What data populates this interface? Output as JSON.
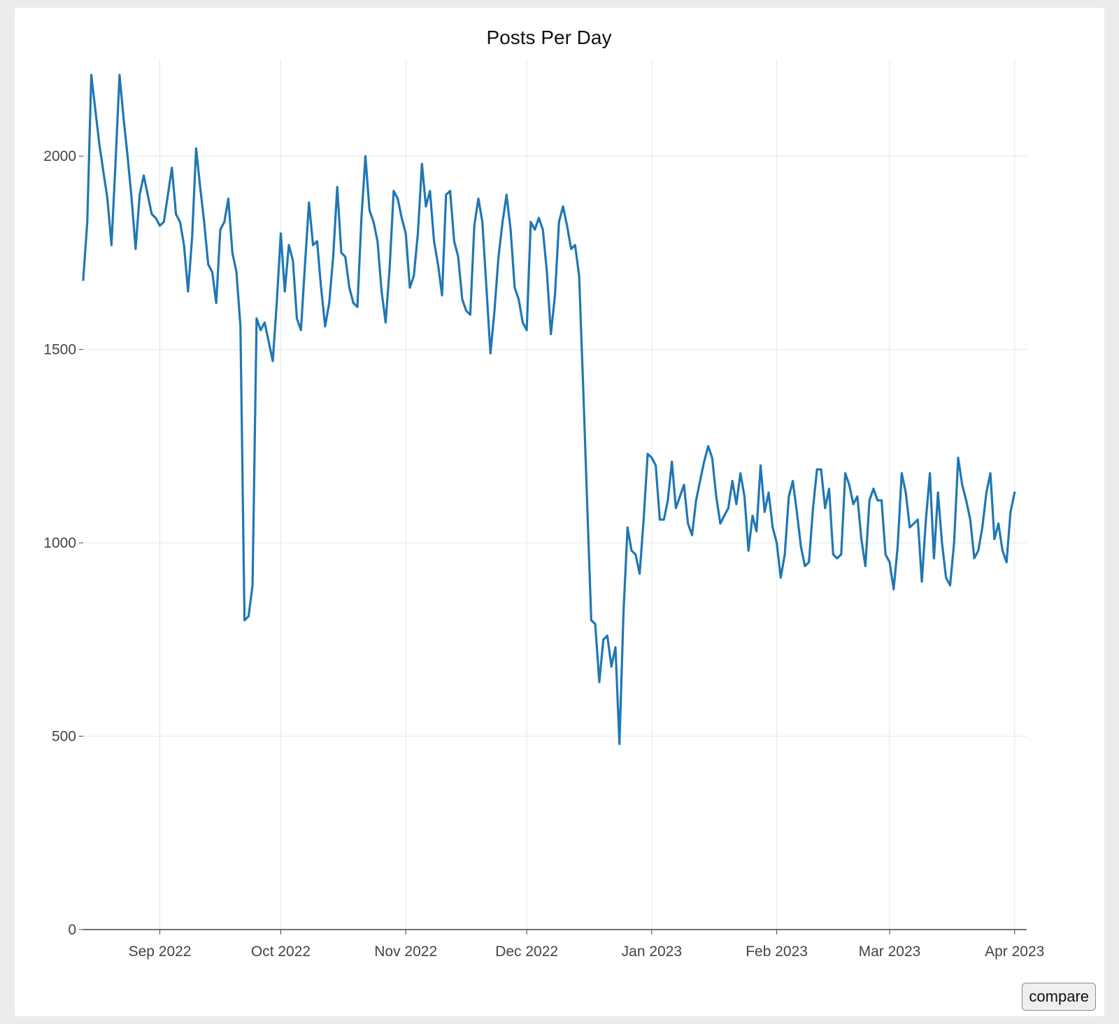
{
  "chart_data": {
    "type": "line",
    "title": "Posts Per Day",
    "xlabel": "",
    "ylabel": "",
    "start_date": "2022-08-13",
    "x_range": [
      "2022-08-13",
      "2023-04-04"
    ],
    "ylim": [
      0,
      2250
    ],
    "y_ticks": [
      0,
      500,
      1000,
      1500,
      2000
    ],
    "x_ticks": [
      {
        "date": "2022-09-01",
        "label": "Sep 2022"
      },
      {
        "date": "2022-10-01",
        "label": "Oct 2022"
      },
      {
        "date": "2022-11-01",
        "label": "Nov 2022"
      },
      {
        "date": "2022-12-01",
        "label": "Dec 2022"
      },
      {
        "date": "2023-01-01",
        "label": "Jan 2023"
      },
      {
        "date": "2023-02-01",
        "label": "Feb 2023"
      },
      {
        "date": "2023-03-01",
        "label": "Mar 2023"
      },
      {
        "date": "2023-04-01",
        "label": "Apr 2023"
      }
    ],
    "grid": true,
    "legend": "none",
    "series": [
      {
        "color": "#1f77b4",
        "values": [
          1680,
          1830,
          2210,
          2120,
          2030,
          1960,
          1890,
          1770,
          1980,
          2210,
          2100,
          2000,
          1890,
          1760,
          1900,
          1950,
          1900,
          1850,
          1840,
          1820,
          1830,
          1900,
          1970,
          1850,
          1830,
          1770,
          1650,
          1790,
          2020,
          1920,
          1830,
          1720,
          1700,
          1620,
          1810,
          1830,
          1890,
          1750,
          1700,
          1560,
          800,
          810,
          890,
          1580,
          1550,
          1570,
          1520,
          1470,
          1620,
          1800,
          1650,
          1770,
          1730,
          1580,
          1550,
          1720,
          1880,
          1770,
          1780,
          1660,
          1560,
          1620,
          1740,
          1920,
          1750,
          1740,
          1660,
          1620,
          1610,
          1840,
          2000,
          1860,
          1830,
          1780,
          1650,
          1570,
          1710,
          1910,
          1890,
          1840,
          1800,
          1660,
          1690,
          1800,
          1980,
          1870,
          1910,
          1780,
          1720,
          1640,
          1900,
          1910,
          1780,
          1740,
          1630,
          1600,
          1590,
          1820,
          1890,
          1830,
          1660,
          1490,
          1600,
          1740,
          1830,
          1900,
          1810,
          1660,
          1630,
          1570,
          1550,
          1830,
          1810,
          1840,
          1810,
          1700,
          1540,
          1640,
          1830,
          1870,
          1820,
          1760,
          1770,
          1690,
          1400,
          1100,
          800,
          790,
          640,
          750,
          760,
          680,
          730,
          480,
          820,
          1040,
          980,
          970,
          920,
          1060,
          1230,
          1220,
          1200,
          1060,
          1060,
          1110,
          1210,
          1090,
          1120,
          1150,
          1050,
          1020,
          1110,
          1160,
          1210,
          1250,
          1220,
          1120,
          1050,
          1070,
          1090,
          1160,
          1100,
          1180,
          1120,
          980,
          1070,
          1030,
          1200,
          1080,
          1130,
          1040,
          1000,
          910,
          970,
          1120,
          1160,
          1080,
          990,
          940,
          950,
          1090,
          1190,
          1190,
          1090,
          1140,
          970,
          960,
          970,
          1180,
          1150,
          1100,
          1120,
          1010,
          940,
          1110,
          1140,
          1110,
          1110,
          970,
          950,
          880,
          990,
          1180,
          1130,
          1040,
          1050,
          1060,
          900,
          1060,
          1180,
          960,
          1130,
          1000,
          910,
          890,
          1000,
          1220,
          1150,
          1110,
          1060,
          960,
          980,
          1040,
          1130,
          1180,
          1010,
          1050,
          980,
          950,
          1080,
          1130
        ]
      }
    ]
  },
  "controls": {
    "compare_label": "compare"
  }
}
